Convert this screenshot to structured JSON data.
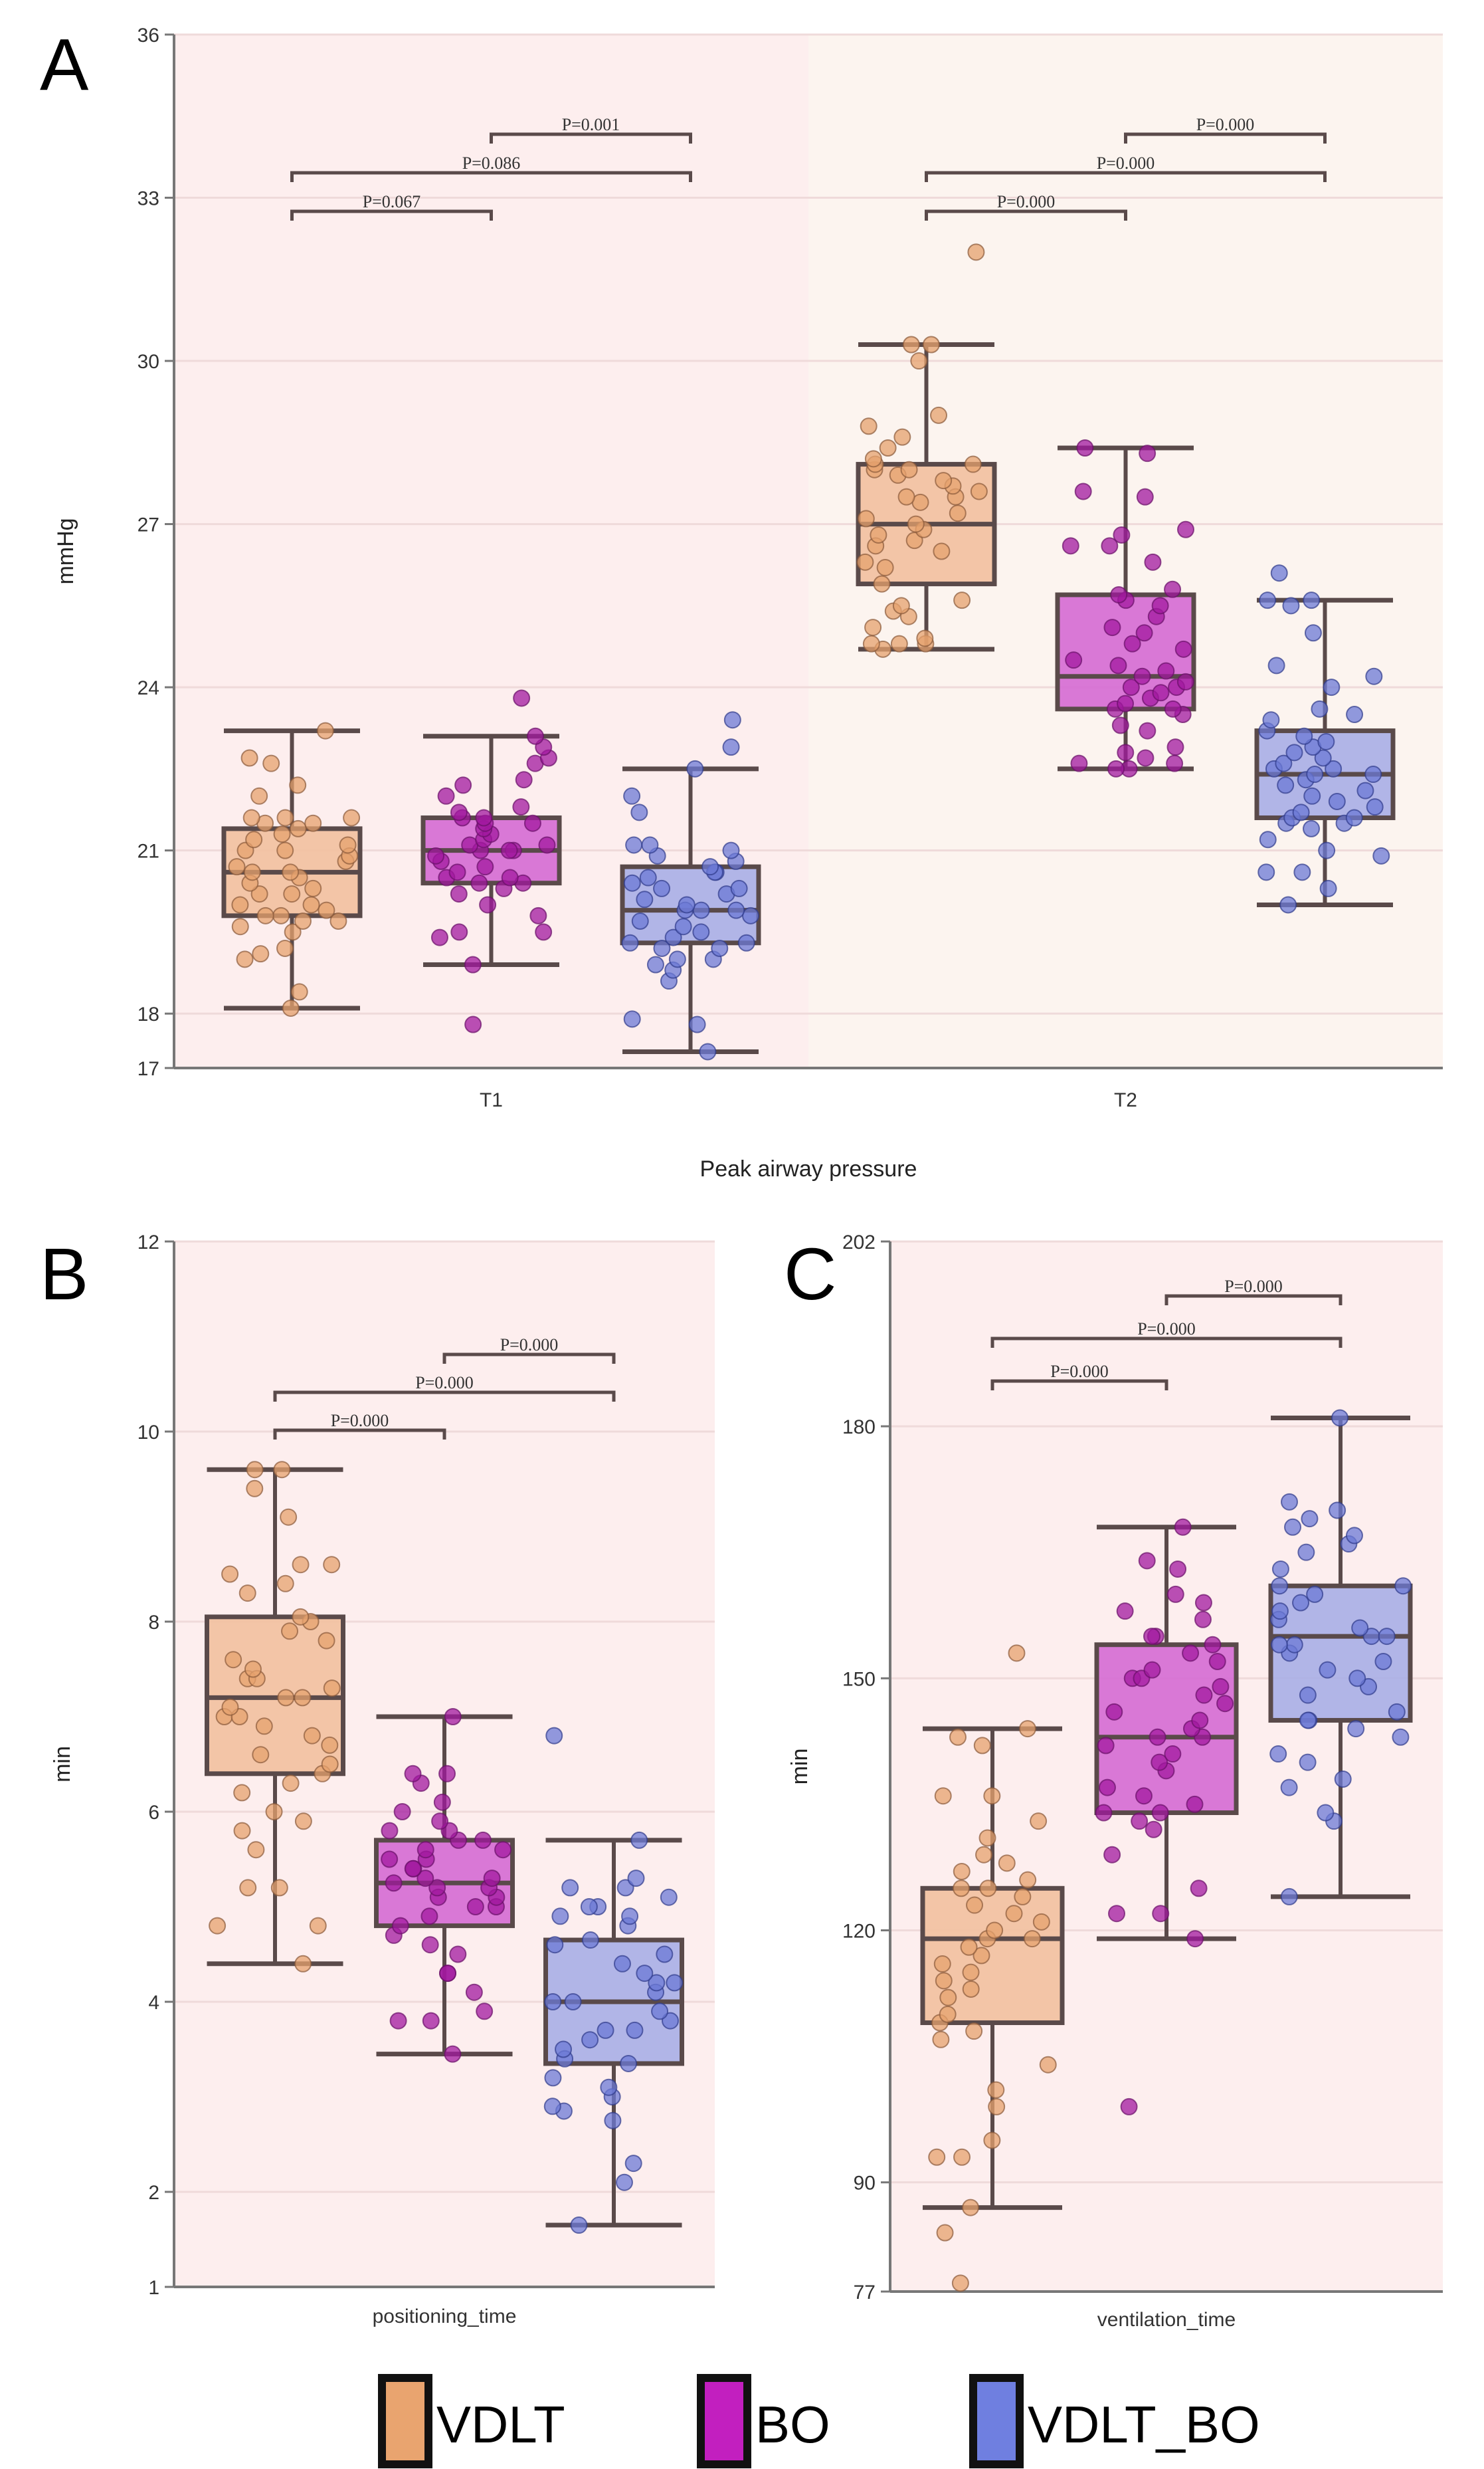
{
  "chart_data": [
    {
      "type": "box",
      "panel": "A",
      "title": "",
      "xlabel": "Peak airway pressure",
      "ylabel": "mmHg",
      "ylim": [
        17,
        36
      ],
      "yticks": [
        17,
        18,
        21,
        24,
        27,
        30,
        33,
        36
      ],
      "grid": true,
      "categories": [
        "T1",
        "T2"
      ],
      "background_colors": [
        "#fdeeee",
        "#fcf4ef"
      ],
      "groups": [
        "VDLT",
        "BO",
        "VDLT_BO"
      ],
      "boxes": [
        {
          "category": "T1",
          "group": "VDLT",
          "whisker_low": 18.1,
          "q1": 19.8,
          "median": 20.6,
          "q3": 21.4,
          "whisker_high": 23.2,
          "points": [
            18.1,
            18.4,
            19.0,
            19.1,
            19.2,
            19.5,
            19.6,
            19.7,
            19.7,
            19.8,
            19.8,
            19.9,
            20.0,
            20.0,
            20.2,
            20.2,
            20.3,
            20.4,
            20.5,
            20.6,
            20.6,
            20.7,
            20.8,
            20.9,
            21.0,
            21.0,
            21.1,
            21.2,
            21.3,
            21.4,
            21.5,
            21.5,
            21.6,
            21.6,
            21.6,
            22.0,
            22.2,
            22.6,
            22.7,
            23.2
          ]
        },
        {
          "category": "T1",
          "group": "BO",
          "whisker_low": 18.9,
          "q1": 20.4,
          "median": 21.0,
          "q3": 21.6,
          "whisker_high": 23.1,
          "points": [
            17.8,
            18.9,
            19.4,
            19.5,
            19.5,
            19.8,
            20.0,
            20.2,
            20.3,
            20.4,
            20.4,
            20.5,
            20.5,
            20.6,
            20.7,
            20.8,
            20.9,
            21.0,
            21.0,
            21.0,
            21.1,
            21.1,
            21.2,
            21.3,
            21.4,
            21.5,
            21.5,
            21.6,
            21.6,
            21.7,
            21.8,
            22.0,
            22.2,
            22.3,
            22.6,
            22.7,
            22.9,
            23.1,
            23.8
          ]
        },
        {
          "category": "T1",
          "group": "VDLT_BO",
          "whisker_low": 17.3,
          "q1": 19.3,
          "median": 19.9,
          "q3": 20.7,
          "whisker_high": 22.5,
          "points": [
            17.3,
            17.8,
            17.9,
            18.6,
            18.8,
            18.9,
            19.0,
            19.0,
            19.2,
            19.2,
            19.3,
            19.3,
            19.4,
            19.5,
            19.6,
            19.7,
            19.8,
            19.9,
            19.9,
            19.9,
            20.0,
            20.1,
            20.2,
            20.3,
            20.3,
            20.4,
            20.5,
            20.6,
            20.6,
            20.7,
            20.8,
            20.9,
            21.0,
            21.1,
            21.1,
            21.7,
            22.0,
            22.5,
            22.9,
            23.4
          ]
        },
        {
          "category": "T2",
          "group": "VDLT",
          "whisker_low": 24.7,
          "q1": 25.9,
          "median": 27.0,
          "q3": 28.1,
          "whisker_high": 30.3,
          "points": [
            24.7,
            24.8,
            24.8,
            24.8,
            24.9,
            25.1,
            25.3,
            25.4,
            25.5,
            25.6,
            25.9,
            26.2,
            26.3,
            26.5,
            26.6,
            26.7,
            26.8,
            26.9,
            27.0,
            27.1,
            27.2,
            27.4,
            27.5,
            27.5,
            27.6,
            27.7,
            27.8,
            27.9,
            28.0,
            28.0,
            28.1,
            28.1,
            28.2,
            28.4,
            28.6,
            28.8,
            29.0,
            30.0,
            30.3,
            30.3,
            32.0
          ]
        },
        {
          "category": "T2",
          "group": "BO",
          "whisker_low": 22.5,
          "q1": 23.6,
          "median": 24.2,
          "q3": 25.7,
          "whisker_high": 28.4,
          "points": [
            22.5,
            22.5,
            22.6,
            22.6,
            22.7,
            22.8,
            22.9,
            23.2,
            23.3,
            23.5,
            23.6,
            23.6,
            23.7,
            23.8,
            23.9,
            24.0,
            24.0,
            24.1,
            24.2,
            24.3,
            24.4,
            24.5,
            24.7,
            24.8,
            25.0,
            25.1,
            25.3,
            25.5,
            25.6,
            25.7,
            25.8,
            26.3,
            26.6,
            26.6,
            26.8,
            26.9,
            27.5,
            27.6,
            28.3,
            28.4
          ]
        },
        {
          "category": "T2",
          "group": "VDLT_BO",
          "whisker_low": 20.0,
          "q1": 21.6,
          "median": 22.4,
          "q3": 23.2,
          "whisker_high": 25.6,
          "points": [
            20.0,
            20.3,
            20.6,
            20.6,
            20.9,
            21.0,
            21.2,
            21.4,
            21.5,
            21.5,
            21.6,
            21.6,
            21.7,
            21.8,
            21.9,
            22.0,
            22.1,
            22.2,
            22.3,
            22.4,
            22.4,
            22.5,
            22.5,
            22.6,
            22.7,
            22.8,
            22.9,
            23.0,
            23.1,
            23.2,
            23.4,
            23.5,
            23.6,
            24.0,
            24.2,
            24.4,
            25.0,
            25.5,
            25.6,
            25.6,
            26.1
          ]
        }
      ],
      "comparisons": [
        {
          "category": "T1",
          "from": "VDLT",
          "to": "BO",
          "label": "P=0.067",
          "level": 1
        },
        {
          "category": "T1",
          "from": "VDLT",
          "to": "VDLT_BO",
          "label": "P=0.086",
          "level": 2
        },
        {
          "category": "T1",
          "from": "BO",
          "to": "VDLT_BO",
          "label": "P=0.001",
          "level": 3
        },
        {
          "category": "T2",
          "from": "VDLT",
          "to": "BO",
          "label": "P=0.000",
          "level": 1
        },
        {
          "category": "T2",
          "from": "VDLT",
          "to": "VDLT_BO",
          "label": "P=0.000",
          "level": 2
        },
        {
          "category": "T2",
          "from": "BO",
          "to": "VDLT_BO",
          "label": "P=0.000",
          "level": 3
        }
      ]
    },
    {
      "type": "box",
      "panel": "B",
      "xlabel": "positioning_time",
      "ylabel": "min",
      "ylim": [
        1,
        12
      ],
      "yticks": [
        1,
        2,
        4,
        6,
        8,
        10,
        12
      ],
      "grid": true,
      "categories": [
        "positioning_time"
      ],
      "groups": [
        "VDLT",
        "BO",
        "VDLT_BO"
      ],
      "boxes": [
        {
          "group": "VDLT",
          "whisker_low": 4.4,
          "q1": 6.4,
          "median": 7.2,
          "q3": 8.05,
          "whisker_high": 9.6,
          "points": [
            4.4,
            4.8,
            4.8,
            5.2,
            5.2,
            5.6,
            5.8,
            5.9,
            6.0,
            6.2,
            6.3,
            6.4,
            6.5,
            6.6,
            6.7,
            6.8,
            6.9,
            7.0,
            7.0,
            7.1,
            7.2,
            7.2,
            7.3,
            7.4,
            7.4,
            7.5,
            7.6,
            7.8,
            7.9,
            8.0,
            8.05,
            8.3,
            8.4,
            8.5,
            8.6,
            8.6,
            9.1,
            9.4,
            9.6,
            9.6
          ]
        },
        {
          "group": "BO",
          "whisker_low": 3.45,
          "q1": 4.8,
          "median": 5.25,
          "q3": 5.7,
          "whisker_high": 7.0,
          "points": [
            3.45,
            3.8,
            3.8,
            3.9,
            4.1,
            4.3,
            4.3,
            4.5,
            4.6,
            4.7,
            4.8,
            4.9,
            5.0,
            5.0,
            5.1,
            5.1,
            5.2,
            5.2,
            5.25,
            5.3,
            5.3,
            5.4,
            5.4,
            5.5,
            5.5,
            5.6,
            5.6,
            5.7,
            5.7,
            5.8,
            5.8,
            5.9,
            6.0,
            6.1,
            6.3,
            6.4,
            6.4,
            7.0
          ]
        },
        {
          "group": "VDLT_BO",
          "whisker_low": 1.65,
          "q1": 3.35,
          "median": 4.0,
          "q3": 4.65,
          "whisker_high": 5.7,
          "points": [
            1.65,
            2.1,
            2.3,
            2.75,
            2.85,
            2.9,
            3.0,
            3.1,
            3.2,
            3.35,
            3.4,
            3.5,
            3.6,
            3.7,
            3.7,
            3.8,
            3.9,
            4.0,
            4.0,
            4.1,
            4.2,
            4.2,
            4.3,
            4.4,
            4.5,
            4.6,
            4.65,
            4.8,
            4.9,
            4.9,
            5.0,
            5.0,
            5.1,
            5.2,
            5.2,
            5.3,
            5.7,
            6.8
          ]
        }
      ],
      "comparisons": [
        {
          "from": "VDLT",
          "to": "BO",
          "label": "P=0.000",
          "level": 1
        },
        {
          "from": "VDLT",
          "to": "VDLT_BO",
          "label": "P=0.000",
          "level": 2
        },
        {
          "from": "BO",
          "to": "VDLT_BO",
          "label": "P=0.000",
          "level": 3
        }
      ]
    },
    {
      "type": "box",
      "panel": "C",
      "xlabel": "ventilation_time",
      "ylabel": "min",
      "ylim": [
        77,
        202
      ],
      "yticks": [
        77,
        90,
        120,
        150,
        180,
        202
      ],
      "grid": true,
      "categories": [
        "ventilation_time"
      ],
      "groups": [
        "VDLT",
        "BO",
        "VDLT_BO"
      ],
      "boxes": [
        {
          "group": "VDLT",
          "whisker_low": 87,
          "q1": 109,
          "median": 119,
          "q3": 125,
          "whisker_high": 144,
          "points": [
            78,
            84,
            87,
            93,
            93,
            95,
            99,
            101,
            104,
            107,
            108,
            109,
            110,
            112,
            113,
            114,
            115,
            116,
            117,
            118,
            119,
            119,
            120,
            121,
            122,
            123,
            124,
            125,
            125,
            126,
            127,
            128,
            129,
            131,
            133,
            136,
            136,
            142,
            143,
            144,
            153
          ]
        },
        {
          "group": "BO",
          "whisker_low": 119,
          "q1": 134,
          "median": 143,
          "q3": 154,
          "whisker_high": 168,
          "points": [
            99,
            119,
            122,
            122,
            125,
            129,
            132,
            133,
            134,
            134,
            135,
            136,
            137,
            139,
            140,
            141,
            142,
            143,
            143,
            144,
            145,
            146,
            147,
            148,
            149,
            150,
            150,
            151,
            152,
            153,
            154,
            155,
            155,
            157,
            158,
            159,
            160,
            163,
            164,
            168
          ]
        },
        {
          "group": "VDLT_BO",
          "whisker_low": 124,
          "q1": 145,
          "median": 155,
          "q3": 161,
          "whisker_high": 181,
          "points": [
            124,
            133,
            134,
            137,
            138,
            140,
            141,
            143,
            144,
            145,
            145,
            146,
            148,
            149,
            150,
            151,
            152,
            153,
            154,
            154,
            155,
            155,
            156,
            157,
            158,
            159,
            160,
            161,
            161,
            163,
            165,
            166,
            167,
            168,
            169,
            170,
            171,
            181
          ]
        }
      ],
      "comparisons": [
        {
          "from": "VDLT",
          "to": "BO",
          "label": "P=0.000",
          "level": 1
        },
        {
          "from": "VDLT",
          "to": "VDLT_BO",
          "label": "P=0.000",
          "level": 2
        },
        {
          "from": "BO",
          "to": "VDLT_BO",
          "label": "P=0.000",
          "level": 3
        }
      ]
    }
  ],
  "panel_labels": [
    "A",
    "B",
    "C"
  ],
  "legend": {
    "placement": "bottom-center",
    "items": [
      {
        "label": "VDLT",
        "color": "#e9a46f"
      },
      {
        "label": "BO",
        "color": "#c21fbf"
      },
      {
        "label": "VDLT_BO",
        "color": "#6f7fe0"
      }
    ]
  },
  "colors": {
    "VDLT": {
      "point": "#e6a26d",
      "box": "#f2c09e",
      "edge": "#8a5a3a"
    },
    "BO": {
      "point": "#a2189f",
      "box": "#d56ad3",
      "edge": "#6a1068"
    },
    "VDLT_BO": {
      "point": "#6c79d6",
      "box": "#a9aee6",
      "edge": "#2f3a8a"
    },
    "line": "#5a4a4a",
    "panel_bg": "#fdeeee",
    "panel_bg_alt": "#fcf4ef"
  }
}
